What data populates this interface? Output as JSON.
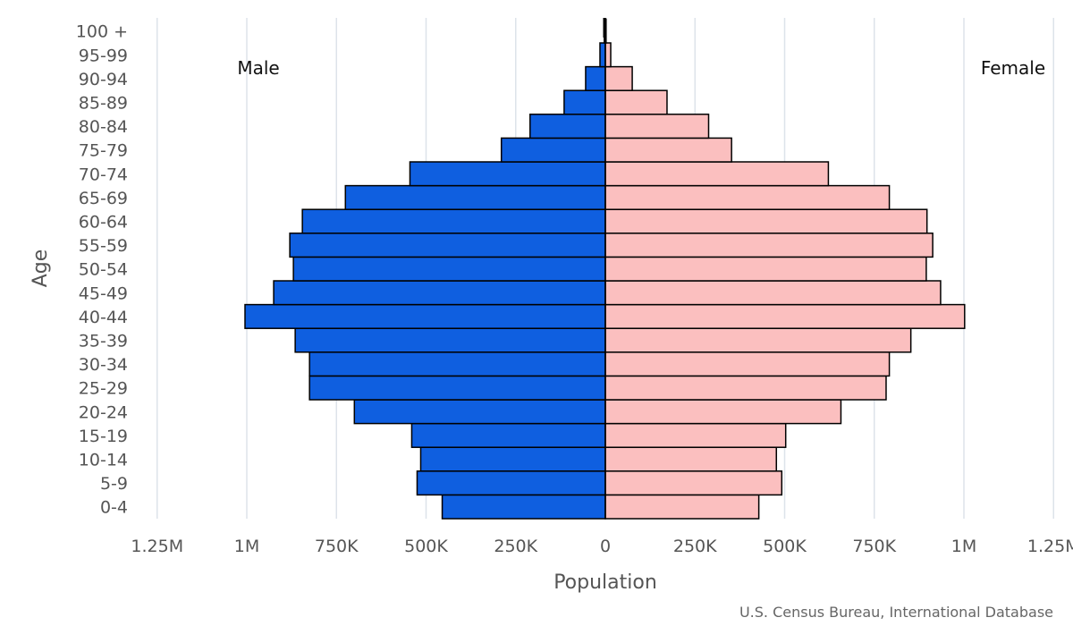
{
  "chart_data": {
    "type": "bar",
    "orientation": "horizontal-population-pyramid",
    "categories": [
      "0-4",
      "5-9",
      "10-14",
      "15-19",
      "20-24",
      "25-29",
      "30-34",
      "35-39",
      "40-44",
      "45-49",
      "50-54",
      "55-59",
      "60-64",
      "65-69",
      "70-74",
      "75-79",
      "80-84",
      "85-89",
      "90-94",
      "95-99",
      "100 +"
    ],
    "series": [
      {
        "name": "Male",
        "color": "#0f5fe0",
        "values": [
          455000,
          525000,
          515000,
          540000,
          700000,
          825000,
          825000,
          865000,
          1005000,
          925000,
          870000,
          880000,
          845000,
          725000,
          545000,
          290000,
          210000,
          115000,
          55000,
          15000,
          3000
        ]
      },
      {
        "name": "Female",
        "color": "#fbbfbf",
        "values": [
          428000,
          492000,
          477000,
          503000,
          657000,
          783000,
          792000,
          852000,
          1002000,
          935000,
          895000,
          913000,
          897000,
          792000,
          622000,
          352000,
          288000,
          172000,
          75000,
          15000,
          2000
        ]
      }
    ],
    "xlabel": "Population",
    "ylabel": "Age",
    "xlim": [
      -1250000,
      1250000
    ],
    "xticks": [
      {
        "value": -1250000,
        "label": "1.25M"
      },
      {
        "value": -1000000,
        "label": "1M"
      },
      {
        "value": -750000,
        "label": "750K"
      },
      {
        "value": -500000,
        "label": "500K"
      },
      {
        "value": -250000,
        "label": "250K"
      },
      {
        "value": 0,
        "label": "0"
      },
      {
        "value": 250000,
        "label": "250K"
      },
      {
        "value": 500000,
        "label": "500K"
      },
      {
        "value": 750000,
        "label": "750K"
      },
      {
        "value": 1000000,
        "label": "1M"
      },
      {
        "value": 1250000,
        "label": "1.25M"
      }
    ],
    "side_labels": {
      "left": "Male",
      "right": "Female"
    },
    "source": "U.S. Census Bureau, International Database",
    "grid": true
  }
}
